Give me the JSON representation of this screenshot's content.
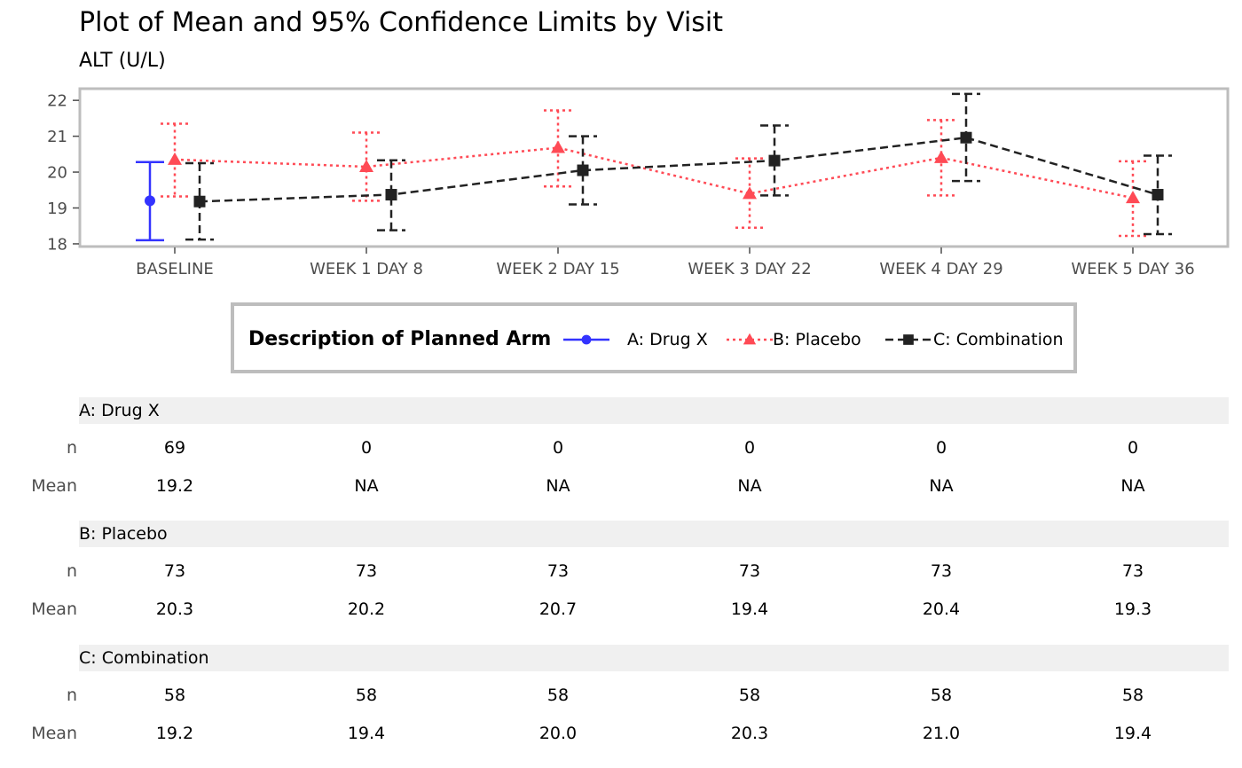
{
  "title": "Plot of Mean and 95% Confidence Limits by Visit",
  "subtitle": "ALT (U/L)",
  "chart_data": {
    "type": "line",
    "title": "Plot of Mean and 95% Confidence Limits by Visit",
    "subtitle": "ALT (U/L)",
    "xlabel": "",
    "ylabel": "",
    "ylim": [
      17.9,
      22.35
    ],
    "yticks": [
      18,
      19,
      20,
      21,
      22
    ],
    "categories": [
      "BASELINE",
      "WEEK 1 DAY 8",
      "WEEK 2 DAY 15",
      "WEEK 3 DAY 22",
      "WEEK 4 DAY 29",
      "WEEK 5 DAY 36"
    ],
    "legend_title": "Description of Planned Arm",
    "series": [
      {
        "name": "A: Drug X",
        "color": "#3333ff",
        "marker": "circle",
        "linetype": "solid",
        "mean": [
          19.2,
          null,
          null,
          null,
          null,
          null
        ],
        "lower": [
          18.1,
          null,
          null,
          null,
          null,
          null
        ],
        "upper": [
          20.28,
          null,
          null,
          null,
          null,
          null
        ]
      },
      {
        "name": "B: Placebo",
        "color": "#ff4a55",
        "marker": "triangle",
        "linetype": "dotted",
        "mean": [
          20.35,
          20.15,
          20.68,
          19.4,
          20.4,
          19.28
        ],
        "lower": [
          19.32,
          19.2,
          19.6,
          18.45,
          19.35,
          18.22
        ],
        "upper": [
          21.35,
          21.1,
          21.72,
          20.38,
          21.45,
          20.3
        ]
      },
      {
        "name": "C: Combination",
        "color": "#222222",
        "marker": "square",
        "linetype": "dashed",
        "mean": [
          19.18,
          19.37,
          20.05,
          20.32,
          20.96,
          19.37
        ],
        "lower": [
          18.12,
          18.38,
          19.1,
          19.35,
          19.75,
          18.27
        ],
        "upper": [
          20.25,
          20.33,
          21.0,
          21.3,
          22.18,
          20.46
        ]
      }
    ]
  },
  "table": {
    "n_label": "n",
    "mean_label": "Mean",
    "groups": [
      {
        "name": "A: Drug X",
        "n": [
          "69",
          "0",
          "0",
          "0",
          "0",
          "0"
        ],
        "mean": [
          "19.2",
          "NA",
          "NA",
          "NA",
          "NA",
          "NA"
        ]
      },
      {
        "name": "B: Placebo",
        "n": [
          "73",
          "73",
          "73",
          "73",
          "73",
          "73"
        ],
        "mean": [
          "20.3",
          "20.2",
          "20.7",
          "19.4",
          "20.4",
          "19.3"
        ]
      },
      {
        "name": "C: Combination",
        "n": [
          "58",
          "58",
          "58",
          "58",
          "58",
          "58"
        ],
        "mean": [
          "19.2",
          "19.4",
          "20.0",
          "20.3",
          "21.0",
          "19.4"
        ]
      }
    ]
  }
}
